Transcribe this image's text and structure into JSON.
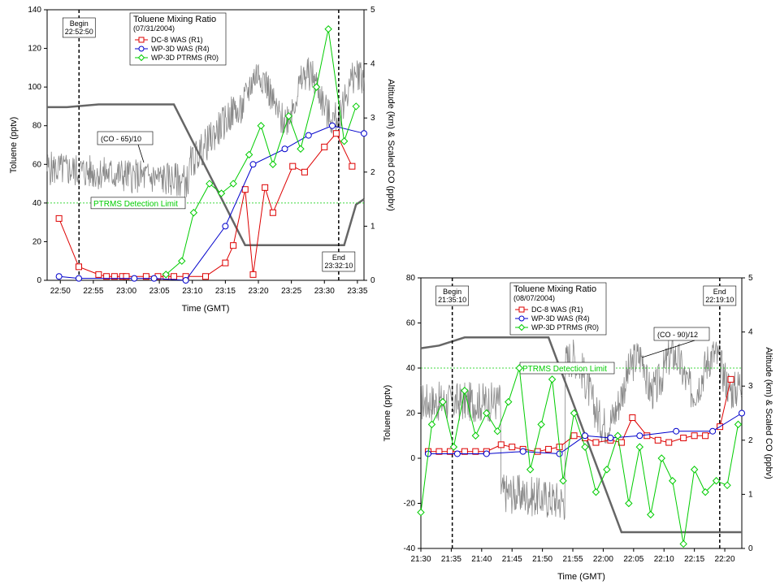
{
  "chart_data": [
    {
      "type": "line",
      "legend_title": "Toluene Mixing Ratio",
      "legend_date": "(07/31/2004)",
      "xlabel": "Time (GMT)",
      "ylabel": "Toluene (pptv)",
      "ylabel_right": "Altitude (km) & Scaled CO (ppbv)",
      "x_ticks": [
        "22:50",
        "22:55",
        "23:00",
        "23:05",
        "23:10",
        "23:15",
        "23:20",
        "23:25",
        "23:30",
        "23:35"
      ],
      "y_ticks": [
        "0",
        "20",
        "40",
        "60",
        "80",
        "100",
        "120",
        "140"
      ],
      "y2_ticks": [
        "0",
        "1",
        "2",
        "3",
        "4",
        "5"
      ],
      "xlim_min": [
        22.8,
        23.6
      ],
      "ylim": [
        0,
        140
      ],
      "y2lim": [
        0,
        5
      ],
      "legend_placement": "top-center",
      "begin": {
        "label": "Begin",
        "time": "22:52:50"
      },
      "end": {
        "label": "End",
        "time": "23:32:10"
      },
      "co_label": "(CO - 65)/10",
      "detection_label": "PTRMS Detection Limit",
      "detection_limit": 40,
      "series": [
        {
          "name": "DC-8 WAS (R1)",
          "color": "#dd0000",
          "marker": "square",
          "x": [
            22.83,
            22.88,
            22.93,
            22.95,
            22.97,
            22.99,
            23.0,
            23.05,
            23.08,
            23.1,
            23.12,
            23.15,
            23.2,
            23.25,
            23.27,
            23.3,
            23.32,
            23.35,
            23.37,
            23.42,
            23.45,
            23.5,
            23.53,
            23.57
          ],
          "y": [
            32,
            7,
            3,
            2,
            2,
            2,
            2,
            2,
            2,
            2,
            2,
            2,
            2,
            9,
            18,
            47,
            3,
            48,
            35,
            59,
            56,
            69,
            76,
            59
          ]
        },
        {
          "name": "WP-3D WAS (R4)",
          "color": "#0000cc",
          "marker": "circle",
          "x": [
            22.83,
            22.88,
            23.02,
            23.07,
            23.15,
            23.25,
            23.32,
            23.4,
            23.46,
            23.52,
            23.6
          ],
          "y": [
            2,
            1,
            1,
            1,
            0,
            28,
            60,
            68,
            75,
            80,
            76
          ]
        },
        {
          "name": "WP-3D PTRMS (R0)",
          "color": "#00cc00",
          "marker": "diamond",
          "x": [
            23.1,
            23.14,
            23.17,
            23.21,
            23.24,
            23.27,
            23.31,
            23.34,
            23.37,
            23.41,
            23.44,
            23.48,
            23.51,
            23.55,
            23.58
          ],
          "y": [
            3,
            10,
            35,
            50,
            45,
            50,
            65,
            80,
            60,
            85,
            68,
            100,
            130,
            72,
            90
          ]
        }
      ]
    },
    {
      "type": "line",
      "legend_title": "Toluene Mixing Ratio",
      "legend_date": "(08/07/2004)",
      "xlabel": "Time (GMT)",
      "ylabel": "Toluene (pptv)",
      "ylabel_right": "Altitude (km) & Scaled CO (ppbv)",
      "x_ticks": [
        "21:30",
        "21:35",
        "21:40",
        "21:45",
        "21:50",
        "21:55",
        "22:00",
        "22:05",
        "22:10",
        "22:15",
        "22:20"
      ],
      "y_ticks": [
        "-40",
        "-20",
        "0",
        "20",
        "40",
        "60",
        "80"
      ],
      "y2_ticks": [
        "0",
        "1",
        "2",
        "3",
        "4",
        "5"
      ],
      "xlim_min": [
        21.5,
        22.38
      ],
      "ylim": [
        -40,
        80
      ],
      "y2lim": [
        0,
        5
      ],
      "legend_placement": "top-center",
      "begin": {
        "label": "Begin",
        "time": "21:35:10"
      },
      "end": {
        "label": "End",
        "time": "22:19:10"
      },
      "co_label": "(CO - 90)/12",
      "detection_label": "PTRMS Detection Limit",
      "detection_limit": 40,
      "series": [
        {
          "name": "DC-8 WAS (R1)",
          "color": "#dd0000",
          "marker": "square",
          "x": [
            21.52,
            21.55,
            21.58,
            21.62,
            21.65,
            21.68,
            21.72,
            21.75,
            21.78,
            21.82,
            21.85,
            21.88,
            21.92,
            21.95,
            21.98,
            22.02,
            22.05,
            22.08,
            22.12,
            22.15,
            22.18,
            22.22,
            22.25,
            22.28,
            22.32,
            22.35
          ],
          "y": [
            3,
            3,
            3,
            3,
            3,
            3,
            6,
            5,
            4,
            3,
            4,
            5,
            10,
            9,
            7,
            8,
            7,
            18,
            10,
            8,
            7,
            9,
            10,
            10,
            14,
            35
          ]
        },
        {
          "name": "WP-3D WAS (R4)",
          "color": "#0000cc",
          "marker": "circle",
          "x": [
            21.52,
            21.6,
            21.68,
            21.78,
            21.88,
            21.95,
            22.02,
            22.1,
            22.2,
            22.3,
            22.38
          ],
          "y": [
            2,
            2,
            2,
            3,
            2,
            10,
            9,
            10,
            12,
            12,
            20
          ]
        },
        {
          "name": "WP-3D PTRMS (R0)",
          "color": "#00cc00",
          "marker": "diamond",
          "x": [
            21.5,
            21.53,
            21.56,
            21.59,
            21.62,
            21.65,
            21.68,
            21.71,
            21.74,
            21.77,
            21.8,
            21.83,
            21.86,
            21.89,
            21.92,
            21.95,
            21.98,
            22.01,
            22.04,
            22.07,
            22.1,
            22.13,
            22.16,
            22.19,
            22.22,
            22.25,
            22.28,
            22.31,
            22.34,
            22.37
          ],
          "y": [
            -24,
            15,
            25,
            5,
            30,
            10,
            20,
            12,
            25,
            40,
            -5,
            15,
            35,
            -10,
            20,
            5,
            -15,
            -5,
            10,
            -20,
            5,
            -25,
            0,
            -10,
            -38,
            -5,
            -15,
            -10,
            -12,
            15
          ]
        }
      ]
    }
  ]
}
